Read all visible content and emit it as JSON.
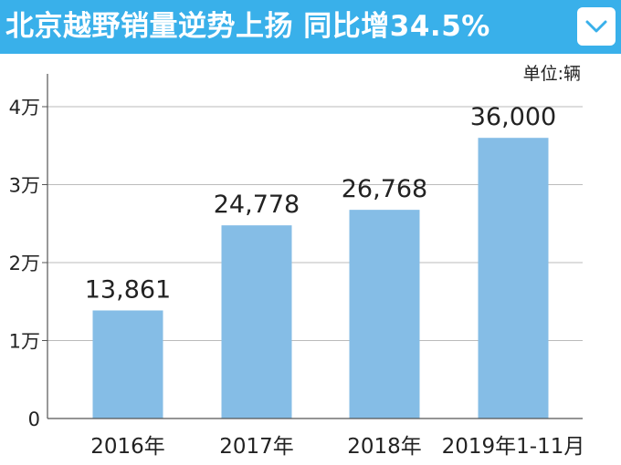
{
  "header": {
    "title": "北京越野销量逆势上扬 同比增34.5%",
    "toggle_icon": "chevron-down-icon",
    "background_color": "#39b0ea"
  },
  "chart_data": {
    "type": "bar",
    "unit_label": "单位:辆",
    "categories": [
      "2016年",
      "2017年",
      "2018年",
      "2019年1-11月"
    ],
    "values": [
      13861,
      24778,
      26768,
      36000
    ],
    "value_labels": [
      "13,861",
      "24,778",
      "26,768",
      "36,000"
    ],
    "title": "",
    "xlabel": "",
    "ylabel": "",
    "ylim": [
      0,
      40000
    ],
    "yticks": [
      0,
      10000,
      20000,
      30000,
      40000
    ],
    "ytick_labels": [
      "0",
      "1万",
      "2万",
      "3万",
      "4万"
    ],
    "grid": true,
    "bar_color": "#85bde6",
    "grid_color": "#bbbbbb"
  }
}
